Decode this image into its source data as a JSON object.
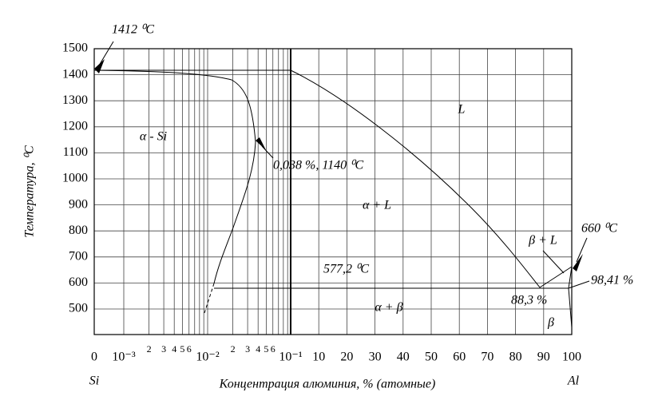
{
  "axes": {
    "y_title": "Температура, ⁰C",
    "y_ticks": [
      "1500",
      "1400",
      "1300",
      "1200",
      "1100",
      "1000",
      "900",
      "800",
      "700",
      "600",
      "500"
    ],
    "x_title": "Концентрация алюминия, % (атомные)",
    "x_ticks": [
      "0",
      "10⁻³",
      "2",
      "3",
      "4",
      "5",
      "6",
      "10⁻²",
      "2",
      "3",
      "4",
      "5",
      "6",
      "10⁻¹",
      "10",
      "20",
      "30",
      "40",
      "50",
      "60",
      "70",
      "80",
      "90",
      "100"
    ],
    "x_end_labels": [
      "Si",
      "Al"
    ]
  },
  "regions": [
    "α - Si",
    "L",
    "α + L",
    "β + L",
    "α + β",
    "β"
  ],
  "annotations": [
    "1412 ⁰C",
    "0,038 %, 1140 ⁰C",
    "660 ⁰C",
    "577,2 ⁰C",
    "98,41 %",
    "88,3 %"
  ]
}
